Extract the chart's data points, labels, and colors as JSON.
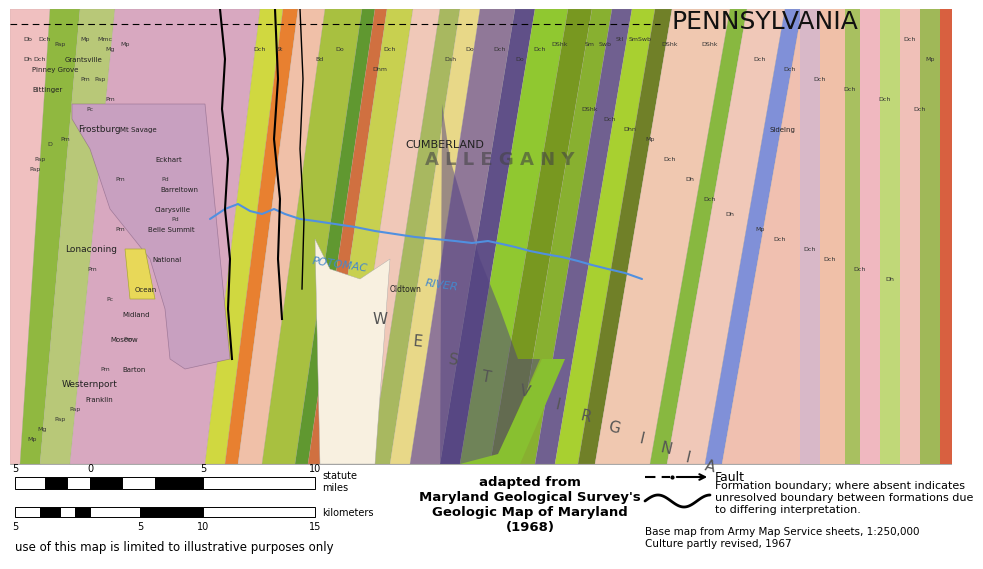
{
  "title": "PENNSYLVANIA",
  "title_fontsize": 18,
  "title_color": "#111111",
  "adapted_text": "adapted from\nMaryland Geological Survey's\nGeologic Map of Maryland\n(1968)",
  "adapted_fontsize": 9.5,
  "adapted_fontweight": "bold",
  "fault_label": "Fault",
  "fault_fontsize": 9,
  "formation_text": "Formation boundary; where absent indicates\nunresolved boundary between formations due\nto differing interpretation.",
  "formation_fontsize": 8,
  "basemap_text": "Base map from Army Map Service sheets, 1:250,000\nCulture partly revised, 1967",
  "basemap_fontsize": 7.5,
  "disclaimer_text": "use of this map is limited to illustrative purposes only",
  "disclaimer_fontsize": 8.5,
  "bg_color": "#ffffff",
  "panel_color": "#ffffff",
  "miles_ticks": [
    "-5",
    "0",
    "5",
    "10"
  ],
  "km_ticks": [
    "5",
    "",
    "5",
    "10",
    "15"
  ],
  "alleghany_label": "A L L E G A N Y",
  "cumberland_label": "CUMBERLAND",
  "frostburg_label": "Frostburg",
  "lonaconing_label": "Lonaconing",
  "westernport_label": "Westernport",
  "potomac_label": "POTOMAC",
  "river_label": "RIVER",
  "west_label": "W  E  S  T",
  "virginia_label": "V  I  R  G  I  N  I  A"
}
